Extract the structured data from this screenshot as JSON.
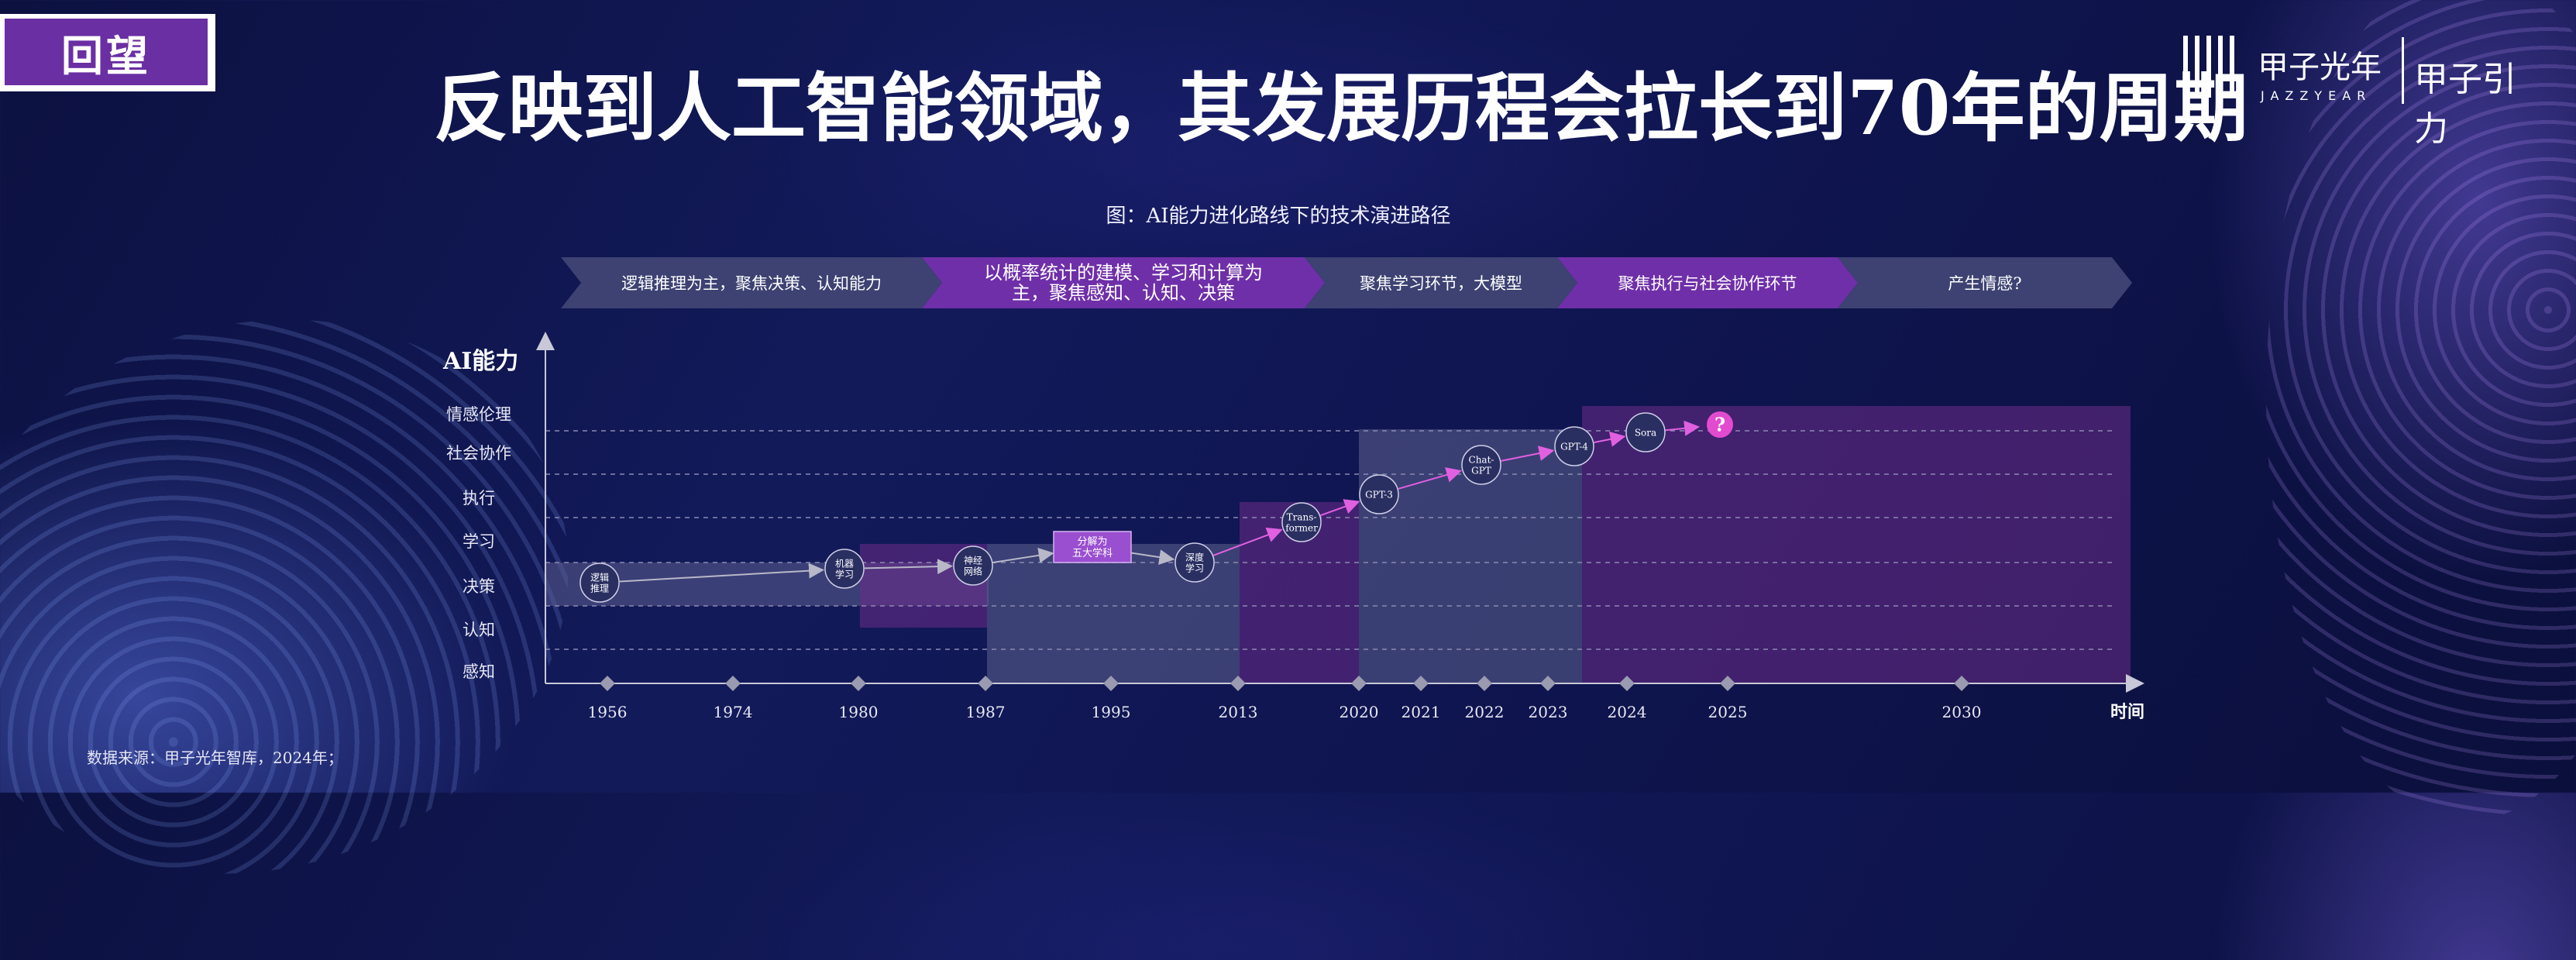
{
  "header": {
    "tag": "回望",
    "title": "反映到人工智能领域，其发展历程会拉长到70年的周期",
    "logo_cn": "甲子光年",
    "logo_en": "JAZZYEAR",
    "logo_cn2": "甲子引力"
  },
  "figure_caption": "图：AI能力进化路线下的技术演进路径",
  "stages": [
    {
      "lines": [
        "逻辑推理为主，聚焦决策、认知能力"
      ],
      "color": "#3d4272"
    },
    {
      "lines": [
        "以概率统计的建模、学习和计算为",
        "主，聚焦感知、认知、决策"
      ],
      "color": "#6f2fa8"
    },
    {
      "lines": [
        "聚焦学习环节，大模型"
      ],
      "color": "#3d4272"
    },
    {
      "lines": [
        "聚焦执行与社会协作环节"
      ],
      "color": "#6f2fa8"
    },
    {
      "lines": [
        "产生情感?"
      ],
      "color": "#3d4272"
    }
  ],
  "y_axis": {
    "title": "AI能力",
    "levels": [
      "情感伦理",
      "社会协作",
      "执行",
      "学习",
      "决策",
      "认知",
      "感知"
    ]
  },
  "x_axis": {
    "title": "时间",
    "years": [
      "1956",
      "1974",
      "1980",
      "1987",
      "1995",
      "2013",
      "2020",
      "2021",
      "2022",
      "2023",
      "2024",
      "2025",
      "2030"
    ]
  },
  "milestones": [
    {
      "lines": [
        "逻辑",
        "推理"
      ],
      "year": "1956",
      "level": "决策"
    },
    {
      "lines": [
        "机器",
        "学习"
      ],
      "year": "1980",
      "level": "决策"
    },
    {
      "lines": [
        "神经",
        "网络"
      ],
      "year": "1987",
      "level": "决策"
    },
    {
      "lines": [
        "分解为",
        "五大学科"
      ],
      "year": "1995",
      "level": "学习",
      "shape": "box"
    },
    {
      "lines": [
        "深度",
        "学习"
      ],
      "year": "2013",
      "level": "决策"
    },
    {
      "lines": [
        "Trans-",
        "former"
      ],
      "year": "2013-2020",
      "level": "学习"
    },
    {
      "lines": [
        "GPT-3"
      ],
      "year": "2020",
      "level": "执行"
    },
    {
      "lines": [
        "Chat-",
        "GPT"
      ],
      "year": "2022",
      "level": "社会协作"
    },
    {
      "lines": [
        "GPT-4"
      ],
      "year": "2023",
      "level": "情感伦理"
    },
    {
      "lines": [
        "Sora"
      ],
      "year": "2024",
      "level": "情感伦理"
    },
    {
      "lines": [
        "?"
      ],
      "year": "2025",
      "level": "情感伦理",
      "shape": "question"
    }
  ],
  "source": "数据来源：甲子光年智库，2024年；",
  "colors": {
    "purple": "#6f2fa8",
    "slate": "#3d4272",
    "arrow_gray": "#b8b8c8",
    "arrow_pink": "#e060e0",
    "question": "#e24bd0"
  }
}
